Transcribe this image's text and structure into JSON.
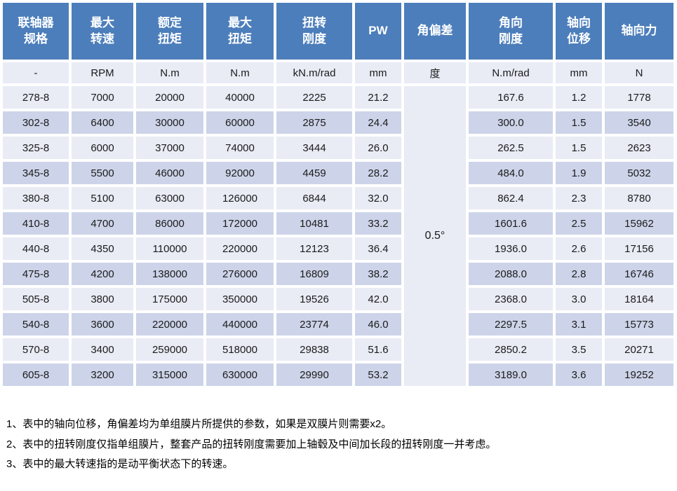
{
  "colors": {
    "header_bg": "#4C7EBB",
    "header_text": "#FFFFFF",
    "row_light": "#E9EBF5",
    "row_dark": "#CDD4E9",
    "cell_text": "#1B1B1B",
    "gap": "#FFFFFF"
  },
  "table": {
    "headers": [
      "联轴器\n规格",
      "最大\n转速",
      "额定\n扭矩",
      "最大\n扭矩",
      "扭转\n刚度",
      "PW",
      "角偏差",
      "角向\n刚度",
      "轴向\n位移",
      "轴向力"
    ],
    "units": [
      "-",
      "RPM",
      "N.m",
      "N.m",
      "kN.m/rad",
      "mm",
      "度",
      "N.m/rad",
      "mm",
      "N"
    ],
    "angle_deviation_merged": "0.5°",
    "rows": [
      {
        "spec": "278-8",
        "max_speed": "7000",
        "rated_torque": "20000",
        "max_torque": "40000",
        "torsional_stiffness": "2225",
        "pw": "21.2",
        "angular_stiffness": "167.6",
        "axial_displacement": "1.2",
        "axial_force": "1778"
      },
      {
        "spec": "302-8",
        "max_speed": "6400",
        "rated_torque": "30000",
        "max_torque": "60000",
        "torsional_stiffness": "2875",
        "pw": "24.4",
        "angular_stiffness": "300.0",
        "axial_displacement": "1.5",
        "axial_force": "3540"
      },
      {
        "spec": "325-8",
        "max_speed": "6000",
        "rated_torque": "37000",
        "max_torque": "74000",
        "torsional_stiffness": "3444",
        "pw": "26.0",
        "angular_stiffness": "262.5",
        "axial_displacement": "1.5",
        "axial_force": "2623"
      },
      {
        "spec": "345-8",
        "max_speed": "5500",
        "rated_torque": "46000",
        "max_torque": "92000",
        "torsional_stiffness": "4459",
        "pw": "28.2",
        "angular_stiffness": "484.0",
        "axial_displacement": "1.9",
        "axial_force": "5032"
      },
      {
        "spec": "380-8",
        "max_speed": "5100",
        "rated_torque": "63000",
        "max_torque": "126000",
        "torsional_stiffness": "6844",
        "pw": "32.0",
        "angular_stiffness": "862.4",
        "axial_displacement": "2.3",
        "axial_force": "8780"
      },
      {
        "spec": "410-8",
        "max_speed": "4700",
        "rated_torque": "86000",
        "max_torque": "172000",
        "torsional_stiffness": "10481",
        "pw": "33.2",
        "angular_stiffness": "1601.6",
        "axial_displacement": "2.5",
        "axial_force": "15962"
      },
      {
        "spec": "440-8",
        "max_speed": "4350",
        "rated_torque": "110000",
        "max_torque": "220000",
        "torsional_stiffness": "12123",
        "pw": "36.4",
        "angular_stiffness": "1936.0",
        "axial_displacement": "2.6",
        "axial_force": "17156"
      },
      {
        "spec": "475-8",
        "max_speed": "4200",
        "rated_torque": "138000",
        "max_torque": "276000",
        "torsional_stiffness": "16809",
        "pw": "38.2",
        "angular_stiffness": "2088.0",
        "axial_displacement": "2.8",
        "axial_force": "16746"
      },
      {
        "spec": "505-8",
        "max_speed": "3800",
        "rated_torque": "175000",
        "max_torque": "350000",
        "torsional_stiffness": "19526",
        "pw": "42.0",
        "angular_stiffness": "2368.0",
        "axial_displacement": "3.0",
        "axial_force": "18164"
      },
      {
        "spec": "540-8",
        "max_speed": "3600",
        "rated_torque": "220000",
        "max_torque": "440000",
        "torsional_stiffness": "23774",
        "pw": "46.0",
        "angular_stiffness": "2297.5",
        "axial_displacement": "3.1",
        "axial_force": "15773"
      },
      {
        "spec": "570-8",
        "max_speed": "3400",
        "rated_torque": "259000",
        "max_torque": "518000",
        "torsional_stiffness": "29838",
        "pw": "51.6",
        "angular_stiffness": "2850.2",
        "axial_displacement": "3.5",
        "axial_force": "20271"
      },
      {
        "spec": "605-8",
        "max_speed": "3200",
        "rated_torque": "315000",
        "max_torque": "630000",
        "torsional_stiffness": "29990",
        "pw": "53.2",
        "angular_stiffness": "3189.0",
        "axial_displacement": "3.6",
        "axial_force": "19252"
      }
    ]
  },
  "notes": [
    "1、表中的轴向位移，角偏差均为单组膜片所提供的参数，如果是双膜片则需要x2。",
    "2、表中的扭转刚度仅指单组膜片，整套产品的扭转刚度需要加上轴毂及中间加长段的扭转刚度一并考虑。",
    "3、表中的最大转速指的是动平衡状态下的转速。"
  ]
}
